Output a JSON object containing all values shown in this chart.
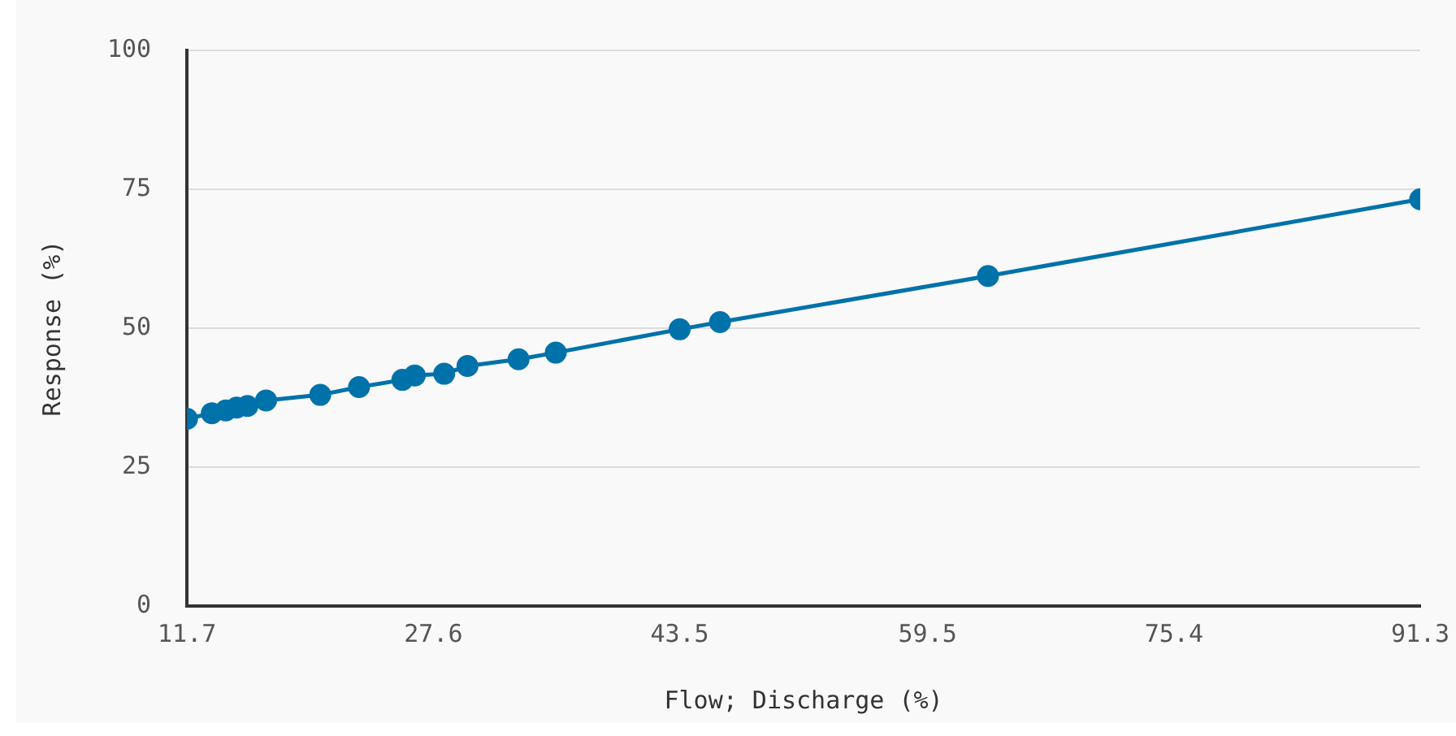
{
  "chart_data": {
    "type": "line",
    "xlabel": "Flow; Discharge (%)",
    "ylabel": "Response (%)",
    "x": [
      11.7,
      13.3,
      14.2,
      14.9,
      15.6,
      16.8,
      20.3,
      22.8,
      25.6,
      26.4,
      28.3,
      29.8,
      33.1,
      35.5,
      43.5,
      46.1,
      63.4,
      91.3
    ],
    "series": [
      {
        "color": "#0072aa",
        "values": [
          33.7,
          34.7,
          35.2,
          35.7,
          36.0,
          37.0,
          38.0,
          39.4,
          40.7,
          41.5,
          41.8,
          43.2,
          44.4,
          45.6,
          49.8,
          51.1,
          59.4,
          73.2
        ]
      }
    ],
    "xlim": [
      11.7,
      91.3
    ],
    "xticks": [
      11.7,
      27.6,
      43.5,
      59.5,
      75.4,
      91.3
    ],
    "ylim": [
      0,
      100
    ],
    "yticks": [
      0,
      25,
      50,
      75,
      100
    ],
    "grid": "y",
    "legend": false,
    "marker": "circle",
    "line_style": "solid"
  }
}
